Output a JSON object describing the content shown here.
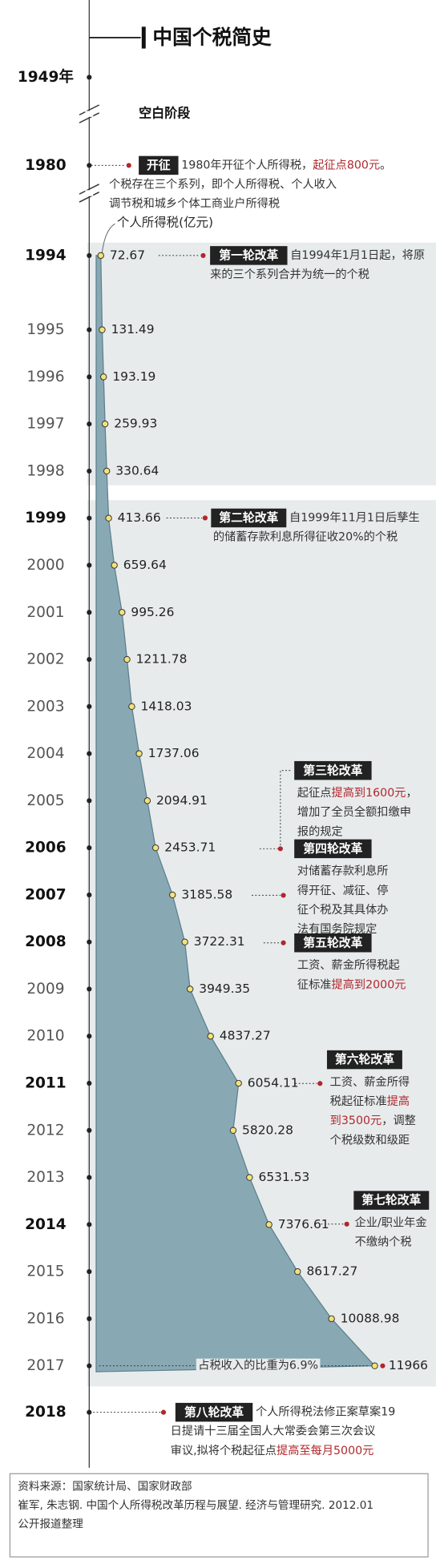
{
  "chart_data": {
    "type": "area",
    "title": "中国个税简史",
    "categories": [
      "1994",
      "1995",
      "1996",
      "1997",
      "1998",
      "1999",
      "2000",
      "2001",
      "2002",
      "2003",
      "2004",
      "2005",
      "2006",
      "2007",
      "2008",
      "2009",
      "2010",
      "2011",
      "2012",
      "2013",
      "2014",
      "2015",
      "2016",
      "2017"
    ],
    "series": [
      {
        "name": "个人所得税(亿元)",
        "color": "#88a9b4",
        "values": [
          72.67,
          131.49,
          193.19,
          259.93,
          330.64,
          413.66,
          659.64,
          995.26,
          1211.78,
          1418.03,
          1737.06,
          2094.91,
          2453.71,
          3185.58,
          3722.31,
          3949.35,
          4837.27,
          6054.11,
          5820.28,
          6531.53,
          7376.61,
          8617.27,
          10088.98,
          11966
        ]
      }
    ],
    "xlim": [
      0,
      12000
    ],
    "share_note": "占税收入的比重为6.9%"
  },
  "timeline": {
    "years": [
      "1949年",
      "1980",
      "2018"
    ],
    "gap_label": "空白阶段"
  },
  "annotations": [
    {
      "tag": "开征",
      "lines": [
        [
          "1980年开征个人所得税，",
          {
            "text": "起征点800元",
            "color": "#b0282d"
          },
          "。"
        ],
        [
          "个税存在三个系列，即个人所得税、个人收入"
        ],
        [
          "调节税和城乡个体工商业户所得税"
        ]
      ]
    },
    {
      "tag": "第一轮改革",
      "lines": [
        [
          "自1994年1月1日起，将原"
        ],
        [
          "来的三个系列合并为统一的个税"
        ]
      ]
    },
    {
      "tag": "第二轮改革",
      "lines": [
        [
          "自1999年11月1日后孳生"
        ],
        [
          "的储蓄存款利息所得征收20%的个税"
        ]
      ]
    },
    {
      "tag": "第三轮改革",
      "lines": [
        [
          "起征点",
          {
            "text": "提高到1600元",
            "color": "#b0282d"
          },
          "，"
        ],
        [
          "增加了全员全额扣缴申"
        ],
        [
          "报的规定"
        ]
      ]
    },
    {
      "tag": "第四轮改革",
      "lines": [
        [
          "对储蓄存款利息所"
        ],
        [
          "得开征、减征、停"
        ],
        [
          "征个税及其具体办"
        ],
        [
          "法有国务院规定"
        ]
      ]
    },
    {
      "tag": "第五轮改革",
      "lines": [
        [
          "工资、薪金所得税起"
        ],
        [
          "征标准",
          {
            "text": "提高到2000元",
            "color": "#b0282d"
          }
        ]
      ]
    },
    {
      "tag": "第六轮改革",
      "lines": [
        [
          "工资、薪金所得"
        ],
        [
          "税起征标准",
          {
            "text": "提高",
            "color": "#b0282d"
          }
        ],
        [
          {
            "text": "到3500元",
            "color": "#b0282d"
          },
          "，调整"
        ],
        [
          "个税级数和级距"
        ]
      ]
    },
    {
      "tag": "第七轮改革",
      "lines": [
        [
          "企业/职业年金"
        ],
        [
          "不缴纳个税"
        ]
      ]
    },
    {
      "tag": "第八轮改革",
      "lines": [
        [
          "个人所得税法修正案草案19"
        ],
        [
          "日提请十三届全国人大常委会第三次会议"
        ],
        [
          "审议,拟将个税起征点",
          {
            "text": "提高至每月5000元",
            "color": "#b0282d"
          }
        ]
      ]
    }
  ],
  "source": {
    "lines": [
      "资料来源：国家统计局、国家财政部",
      "崔军, 朱志钢. 中国个人所得税改革历程与展望. 经济与管理研究. 2012.01",
      "公开报道整理"
    ]
  }
}
